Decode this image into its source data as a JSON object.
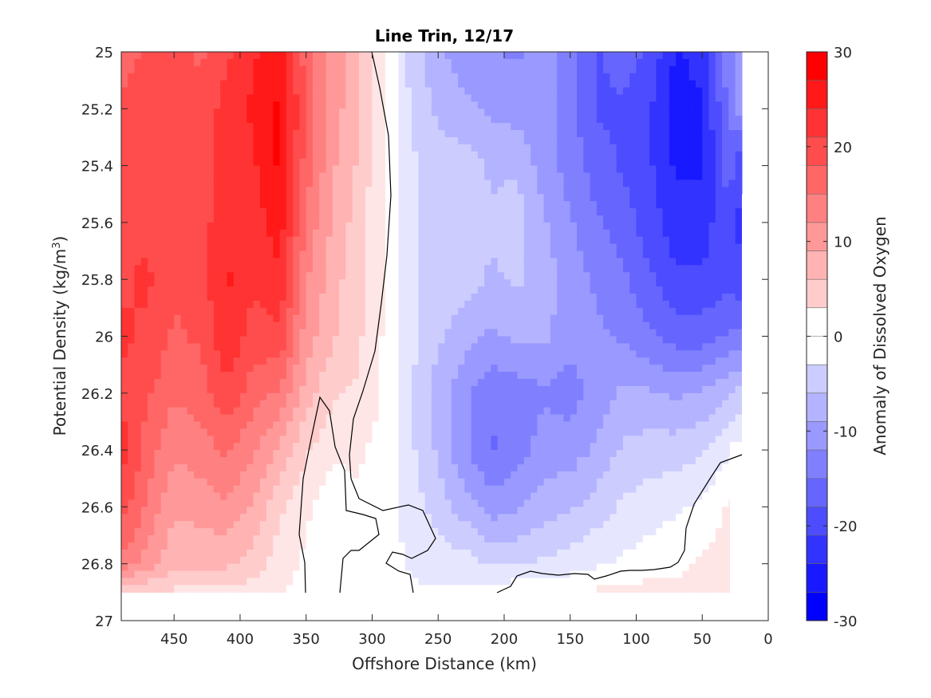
{
  "chart_data": {
    "type": "contour",
    "title": "Line Trin, 12/17",
    "xlabel": "Offshore Distance (km)",
    "ylabel_main": "Potential Density (kg/m",
    "ylabel_sup": "3",
    "ylabel_end": ")",
    "colorbar_label": "Anomaly of Dissolved Oxygen",
    "xlim": [
      490,
      0
    ],
    "ylim": [
      25,
      27
    ],
    "x_reversed": true,
    "y_reversed": true,
    "xticks": [
      450,
      400,
      350,
      300,
      250,
      200,
      150,
      100,
      50,
      0
    ],
    "yticks": [
      25,
      25.2,
      25.4,
      25.6,
      25.8,
      26,
      26.2,
      26.4,
      26.6,
      26.8,
      27
    ],
    "xtick_labels": [
      "450",
      "400",
      "350",
      "300",
      "250",
      "200",
      "150",
      "100",
      "50",
      "0"
    ],
    "ytick_labels": [
      "25",
      "25.2",
      "25.4",
      "25.6",
      "25.8",
      "26",
      "26.2",
      "26.4",
      "26.6",
      "26.8",
      "27"
    ],
    "colorbar_range": [
      -30,
      30
    ],
    "colorbar_ticks": [
      30,
      20,
      10,
      0,
      -10,
      -20,
      -30
    ],
    "colorbar_tick_labels": [
      "30",
      "20",
      "10",
      "0",
      "-10",
      "-20",
      "-30"
    ],
    "colormap": "blue-white-red",
    "color_positive": "#ff0000",
    "color_negative": "#0000ff",
    "color_zero": "#ffffff",
    "zero_contour_color": "#000000",
    "data_extent": {
      "x_max": 490,
      "x_min": 20,
      "y_min": 25,
      "y_max": 26.9
    },
    "grid_x": [
      490,
      470,
      450,
      430,
      410,
      390,
      370,
      350,
      330,
      310,
      290,
      270,
      250,
      230,
      210,
      190,
      170,
      150,
      130,
      110,
      90,
      70,
      50,
      30,
      20
    ],
    "grid_y": [
      25,
      25.2,
      25.4,
      25.6,
      25.8,
      26,
      26.2,
      26.4,
      26.6,
      26.8,
      26.9
    ],
    "values": [
      [
        18,
        20,
        21,
        19,
        22,
        25,
        28,
        18,
        12,
        8,
        2,
        -6,
        -10,
        -12,
        -13,
        -14,
        -12,
        -16,
        -20,
        -18,
        -20,
        -26,
        -24,
        -14,
        -12
      ],
      [
        20,
        22,
        21,
        20,
        24,
        26,
        29,
        19,
        12,
        8,
        1,
        -5,
        -8,
        -10,
        -11,
        -12,
        -12,
        -15,
        -20,
        -20,
        -22,
        -27,
        -26,
        -16,
        -12
      ],
      [
        21,
        22,
        20,
        21,
        24,
        25,
        29,
        18,
        11,
        7,
        1,
        -4,
        -6,
        -6,
        -8,
        -8,
        -12,
        -15,
        -18,
        -20,
        -22,
        -26,
        -26,
        -18,
        -22
      ],
      [
        22,
        22,
        20,
        21,
        25,
        24,
        27,
        16,
        10,
        6,
        1,
        -4,
        -6,
        -6,
        -7,
        -6,
        -10,
        -13,
        -16,
        -18,
        -21,
        -24,
        -24,
        -20,
        -24
      ],
      [
        22,
        23,
        20,
        21,
        26,
        23,
        25,
        14,
        9,
        5,
        1,
        -4,
        -6,
        -6,
        -8,
        -7,
        -9,
        -12,
        -14,
        -16,
        -19,
        -22,
        -22,
        -20,
        -22
      ],
      [
        23,
        22,
        19,
        20,
        25,
        21,
        22,
        12,
        8,
        5,
        1,
        -4,
        -7,
        -9,
        -11,
        -10,
        -10,
        -12,
        -13,
        -14,
        -16,
        -18,
        -18,
        -16,
        -16
      ],
      [
        22,
        20,
        17,
        18,
        22,
        18,
        16,
        9,
        5,
        4,
        1,
        -4,
        -9,
        -13,
        -16,
        -15,
        -14,
        -15,
        -12,
        -10,
        -10,
        -11,
        -10,
        -8,
        -6
      ],
      [
        24,
        18,
        14,
        15,
        17,
        14,
        10,
        5,
        2,
        2,
        0,
        -4,
        -8,
        -13,
        -17,
        -15,
        -12,
        -12,
        -10,
        -7,
        -6,
        -6,
        -5,
        -2,
        -1
      ],
      [
        21,
        16,
        11,
        12,
        13,
        10,
        5,
        2,
        0,
        1,
        0,
        -3,
        -6,
        -9,
        -12,
        -11,
        -9,
        -8,
        -6,
        -4,
        -3,
        -2,
        -1,
        2,
        3
      ],
      [
        16,
        12,
        8,
        8,
        8,
        6,
        3,
        1,
        0,
        0,
        0,
        -2,
        -3,
        -3,
        -5,
        -5,
        -4,
        -3,
        -2,
        -1,
        0,
        1,
        2,
        3,
        3
      ],
      [
        6,
        5,
        4,
        4,
        4,
        3,
        2,
        0,
        0,
        0,
        0,
        -1,
        -1,
        -1,
        -1,
        1,
        1,
        1,
        2,
        2,
        3,
        2,
        2,
        2,
        2
      ]
    ]
  }
}
